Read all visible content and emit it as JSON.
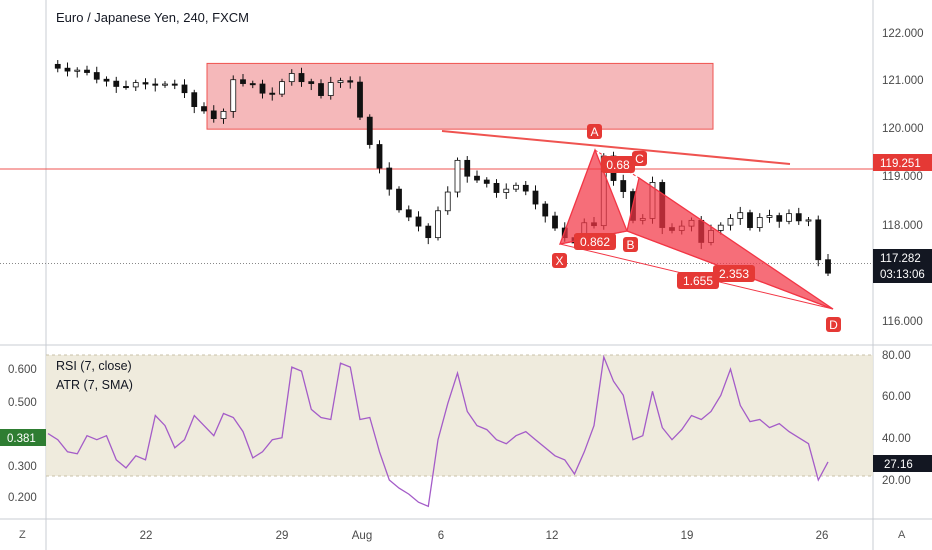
{
  "header": {
    "title": "Euro / Japanese Yen, 240, FXCM",
    "rsi_label": "RSI (7, close)",
    "atr_label": "ATR (7, SMA)"
  },
  "colors": {
    "candle": "#111111",
    "zone_fill": "#f4b4b6",
    "zone_stroke": "#ef5350",
    "line_red": "#ef5350",
    "badge_red": "#e53935",
    "pattern": "#f23645",
    "rsi_line": "#a45cc8",
    "rsi_band": "#ece7d7",
    "current_price_box": "#131722",
    "ref_price_box": "#e53935",
    "atr_box": "#2e7d32",
    "rsi_box": "#131722"
  },
  "price_axis": {
    "ticks": [
      "122.000",
      "121.000",
      "120.000",
      "119.000",
      "118.000",
      "116.000"
    ],
    "current_price": "117.282",
    "countdown": "03:13:06",
    "ref_price": "119.251",
    "scale_mode": "A"
  },
  "indicator_axis": {
    "right_ticks": [
      "80.00",
      "60.00",
      "40.00",
      "20.00"
    ],
    "left_ticks": [
      "0.600",
      "0.500",
      "0.300",
      "0.200"
    ],
    "atr_value": "0.381",
    "rsi_value": "27.16",
    "corner_label": "Z"
  },
  "time_axis": {
    "ticks": [
      "22",
      "29",
      "Aug",
      "6",
      "12",
      "19",
      "26"
    ]
  },
  "pattern": {
    "labels": {
      "X": "X",
      "A": "A",
      "B": "B",
      "C": "C",
      "D": "D"
    },
    "ratios": {
      "xab": "0.862",
      "abc": "0.68",
      "bcd": "2.353",
      "xad": "1.655"
    }
  },
  "chart_data": {
    "type": "candlestick",
    "title": "Euro / Japanese Yen, 240, FXCM",
    "ylim": [
      115.6,
      122.7
    ],
    "horizontal_levels": [
      119.251,
      117.282
    ],
    "supply_zone": {
      "y_low": 120.08,
      "y_high": 121.45
    },
    "price_path": [
      121.43,
      121.35,
      121.29,
      121.31,
      121.26,
      121.12,
      121.08,
      120.97,
      120.96,
      121.05,
      121.02,
      121.0,
      121.02,
      121.0,
      120.84,
      120.55,
      120.46,
      120.3,
      120.45,
      121.11,
      121.03,
      121.02,
      120.83,
      120.81,
      121.07,
      121.24,
      121.07,
      121.03,
      120.78,
      121.05,
      121.09,
      121.06,
      120.33,
      119.76,
      119.27,
      118.83,
      118.4,
      118.25,
      118.06,
      117.82,
      118.38,
      118.77,
      119.43,
      119.1,
      119.02,
      118.95,
      118.76,
      118.83,
      118.91,
      118.79,
      118.52,
      118.27,
      118.02,
      117.82,
      117.71,
      118.13,
      118.07,
      119.52,
      119.01,
      118.78,
      118.18,
      118.22,
      118.97,
      118.03,
      117.97,
      118.06,
      118.18,
      117.72,
      117.97,
      118.08,
      118.22,
      118.34,
      118.03,
      118.24,
      118.28,
      118.16,
      118.32,
      118.17,
      118.19,
      117.36,
      117.08
    ],
    "rsi": [
      41,
      38,
      32,
      31,
      40,
      38,
      40,
      28,
      24,
      30,
      28,
      50,
      45,
      34,
      38,
      50,
      45,
      40,
      51,
      49,
      42,
      29,
      32,
      38,
      39,
      74,
      72,
      53,
      49,
      48,
      76,
      74,
      48,
      49,
      32,
      18,
      14,
      11,
      7,
      5,
      38,
      56,
      71,
      52,
      45,
      43,
      38,
      36,
      40,
      42,
      38,
      34,
      30,
      28,
      21,
      32,
      45,
      79,
      67,
      60,
      38,
      40,
      62,
      44,
      38,
      43,
      50,
      48,
      52,
      60,
      73,
      55,
      47,
      48,
      44,
      46,
      42,
      39,
      36,
      18,
      27
    ],
    "atr_ylim": [
      0.15,
      0.65
    ]
  }
}
